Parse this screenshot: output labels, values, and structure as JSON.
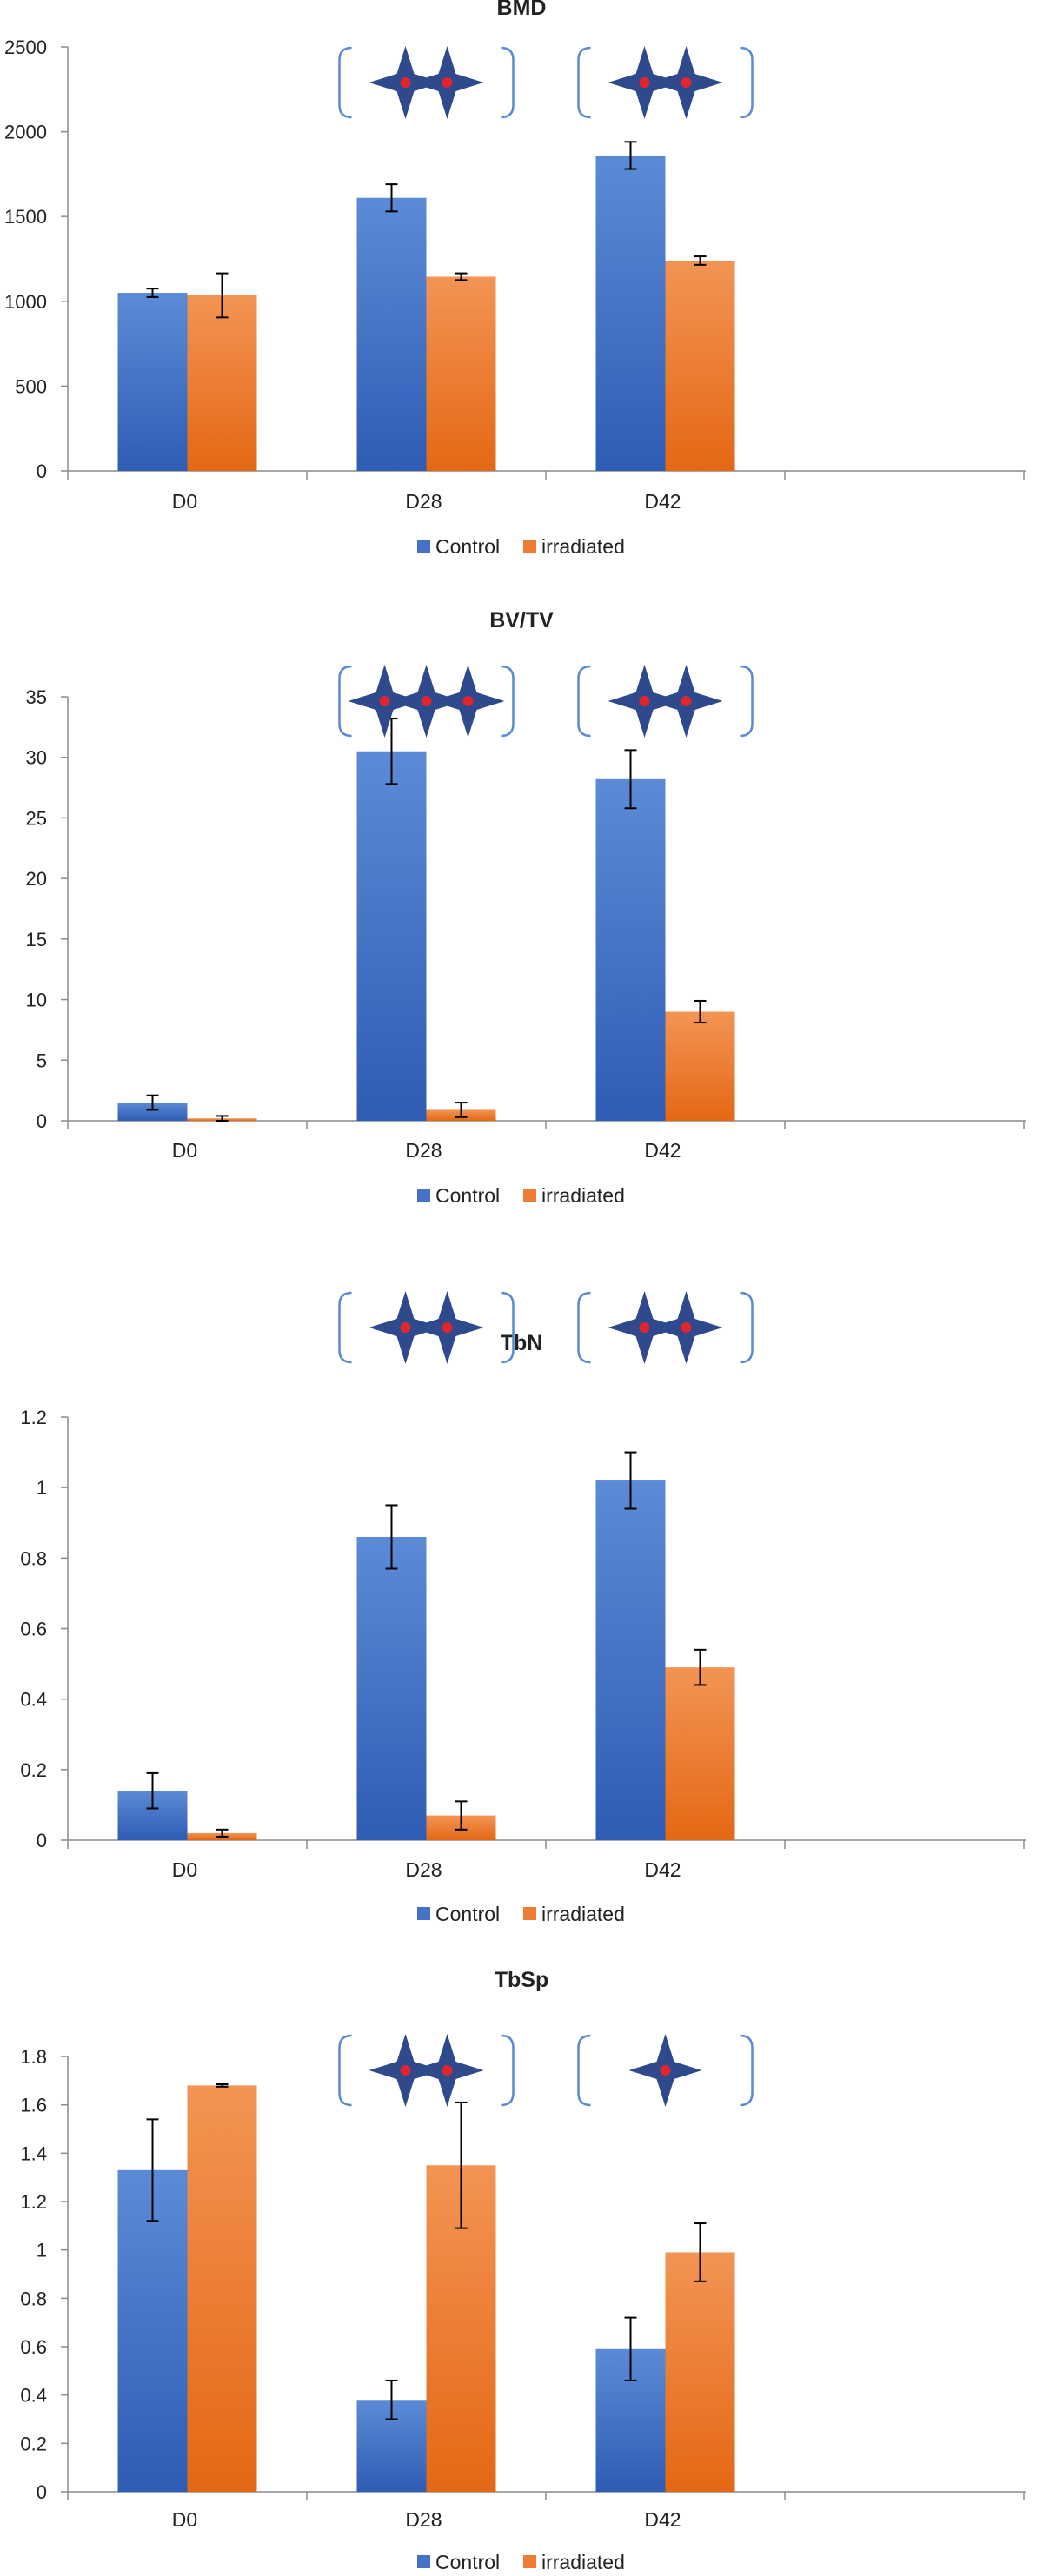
{
  "colors": {
    "control": "#4472C4",
    "irradiated": "#ED7D31",
    "star": "#2E4A8C",
    "star_center": "#E0262C",
    "bracket": "#5B8AD0"
  },
  "chart_data": [
    {
      "type": "bar",
      "title": "BMD",
      "categories": [
        "D0",
        "D28",
        "D42"
      ],
      "series": [
        {
          "name": "Control",
          "values": [
            1050,
            1610,
            1860
          ],
          "errors": [
            25,
            80,
            80
          ]
        },
        {
          "name": "irradiated",
          "values": [
            1035,
            1145,
            1240
          ],
          "errors": [
            130,
            20,
            25
          ]
        }
      ],
      "ylim": [
        0,
        2500
      ],
      "yticks": [
        "0",
        "500",
        "1000",
        "1500",
        "2000",
        "2500"
      ],
      "annotations": [
        {
          "category": "D28",
          "stars": 2
        },
        {
          "category": "D42",
          "stars": 2
        }
      ],
      "legend": [
        "Control",
        "irradiated"
      ]
    },
    {
      "type": "bar",
      "title": "BV/TV",
      "categories": [
        "D0",
        "D28",
        "D42"
      ],
      "series": [
        {
          "name": "Control",
          "values": [
            1.5,
            30.5,
            28.2
          ],
          "errors": [
            0.6,
            2.7,
            2.4
          ]
        },
        {
          "name": "irradiated",
          "values": [
            0.2,
            0.9,
            9.0
          ],
          "errors": [
            0.2,
            0.6,
            0.9
          ]
        }
      ],
      "ylim": [
        0,
        35
      ],
      "yticks": [
        "0",
        "5",
        "10",
        "15",
        "20",
        "25",
        "30",
        "35"
      ],
      "annotations": [
        {
          "category": "D28",
          "stars": 3
        },
        {
          "category": "D42",
          "stars": 2
        }
      ],
      "legend": [
        "Control",
        "irradiated"
      ]
    },
    {
      "type": "bar",
      "title": "TbN",
      "categories": [
        "D0",
        "D28",
        "D42"
      ],
      "series": [
        {
          "name": "Control",
          "values": [
            0.14,
            0.86,
            1.02
          ],
          "errors": [
            0.05,
            0.09,
            0.08
          ]
        },
        {
          "name": "irradiated",
          "values": [
            0.02,
            0.07,
            0.49
          ],
          "errors": [
            0.01,
            0.04,
            0.05
          ]
        }
      ],
      "ylim": [
        0,
        1.2
      ],
      "yticks": [
        "0",
        "0.2",
        "0.4",
        "0.6",
        "0.8",
        "1",
        "1.2"
      ],
      "annotations": [
        {
          "category": "D28",
          "stars": 2
        },
        {
          "category": "D42",
          "stars": 2
        }
      ],
      "legend": [
        "Control",
        "irradiated"
      ]
    },
    {
      "type": "bar",
      "title": "TbSp",
      "categories": [
        "D0",
        "D28",
        "D42"
      ],
      "series": [
        {
          "name": "Control",
          "values": [
            1.33,
            0.38,
            0.59
          ],
          "errors": [
            0.21,
            0.08,
            0.13
          ]
        },
        {
          "name": "irradiated",
          "values": [
            1.68,
            1.35,
            0.99
          ],
          "errors": [
            0.005,
            0.26,
            0.12
          ]
        }
      ],
      "ylim": [
        0,
        1.8
      ],
      "yticks": [
        "0",
        "0.2",
        "0.4",
        "0.6",
        "0.8",
        "1",
        "1.2",
        "1.4",
        "1.6",
        "1.8"
      ],
      "annotations": [
        {
          "category": "D28",
          "stars": 2
        },
        {
          "category": "D42",
          "stars": 1
        }
      ],
      "legend": [
        "Control",
        "irradiated"
      ]
    }
  ]
}
